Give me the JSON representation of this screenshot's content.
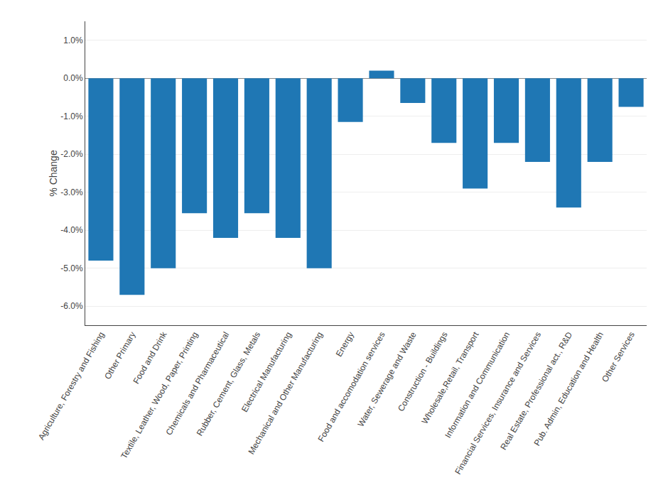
{
  "chart_data": {
    "type": "bar",
    "categories": [
      "Agriculture, Forestry and Fishing",
      "Other Primary",
      "Food and Drink",
      "Textile, Leather, Wood, Paper, Printing",
      "Chemicals and Pharmaceutical",
      "Rubber, Cement, Glass, Metals",
      "Electrical Manufacturing",
      "Mechanical and Other Manufacturing",
      "Energy",
      "Food and accomodation services",
      "Water, Sewerage and Waste",
      "Construction - Buildings",
      "Wholesale,Retail, Transport",
      "Information and Communication",
      "Financial Services, Insurance and Services",
      "Real Estate, Professional act., R&D",
      "Pub. Admin, Education and Health",
      "Other Services"
    ],
    "values": [
      -4.8,
      -5.7,
      -5.0,
      -3.55,
      -4.2,
      -3.55,
      -4.2,
      -5.0,
      -1.15,
      0.2,
      -0.65,
      -1.7,
      -2.9,
      -1.7,
      -2.2,
      -3.4,
      -2.2,
      -0.75
    ],
    "ylabel": "% Change",
    "ylim": [
      -6.5,
      1.5
    ],
    "yticks": [
      {
        "value": 1.0,
        "label": "1.0%"
      },
      {
        "value": 0.0,
        "label": "0.0%"
      },
      {
        "value": -1.0,
        "label": "-1.0%"
      },
      {
        "value": -2.0,
        "label": "-2.0%"
      },
      {
        "value": -3.0,
        "label": "-3.0%"
      },
      {
        "value": -4.0,
        "label": "-4.0%"
      },
      {
        "value": -5.0,
        "label": "-5.0%"
      },
      {
        "value": -6.0,
        "label": "-6.0%"
      }
    ],
    "grid": true
  }
}
